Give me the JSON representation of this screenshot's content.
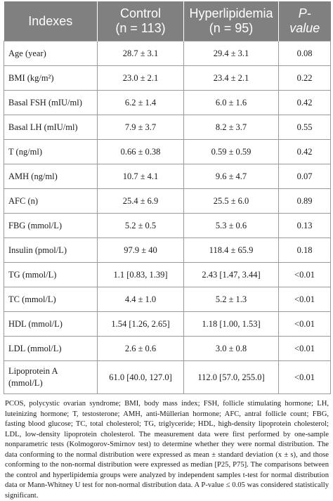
{
  "header": {
    "col1": "Indexes",
    "col2_line1": "Control",
    "col2_line2": "(n = 113)",
    "col3_line1": "Hyperlipidemia",
    "col3_line2": "(n = 95)",
    "col4_line1": "P-",
    "col4_line2": "value"
  },
  "rows": [
    {
      "index": "Age (year)",
      "control": "28.7 ± 3.1",
      "hyper": "29.4 ± 3.1",
      "p": "0.08"
    },
    {
      "index": "BMI (kg/m²)",
      "control": "23.0 ± 2.1",
      "hyper": "23.4 ± 2.1",
      "p": "0.22"
    },
    {
      "index": "Basal FSH (mIU/ml)",
      "control": "6.2 ± 1.4",
      "hyper": "6.0 ± 1.6",
      "p": "0.42"
    },
    {
      "index": "Basal LH (mIU/ml)",
      "control": "7.9 ± 3.7",
      "hyper": "8.2 ± 3.7",
      "p": "0.55"
    },
    {
      "index": "T (ng/ml)",
      "control": "0.66 ± 0.38",
      "hyper": "0.59 ± 0.59",
      "p": "0.42"
    },
    {
      "index": "AMH (ng/ml)",
      "control": "10.7 ± 4.1",
      "hyper": "9.6 ± 4.7",
      "p": "0.07"
    },
    {
      "index": "AFC (n)",
      "control": "25.4 ± 6.9",
      "hyper": "25.5 ± 6.0",
      "p": "0.89"
    },
    {
      "index": "FBG (mmol/L)",
      "control": "5.2 ± 0.5",
      "hyper": "5.3 ± 0.6",
      "p": "0.13"
    },
    {
      "index": "Insulin (pmol/L)",
      "control": "97.9 ± 40",
      "hyper": "118.4 ± 65.9",
      "p": "0.18"
    },
    {
      "index": "TG (mmol/L)",
      "control": "1.1 [0.83, 1.39]",
      "hyper": "2.43 [1.47, 3.44]",
      "p": "<0.01"
    },
    {
      "index": "TC (mmol/L)",
      "control": "4.4 ± 1.0",
      "hyper": "5.2 ± 1.3",
      "p": "<0.01"
    },
    {
      "index": "HDL (mmol/L)",
      "control": "1.54 [1.26, 2.65]",
      "hyper": "1.18 [1.00, 1.53]",
      "p": "<0.01"
    },
    {
      "index": "LDL (mmol/L)",
      "control": "2.6 ± 0.6",
      "hyper": "3.0 ± 0.8",
      "p": "<0.01"
    },
    {
      "index": "Lipoprotein A (mmol/L)",
      "control": "61.0 [40.0, 127.0]",
      "hyper": "112.0 [57.0, 255.0]",
      "p": "<0.01"
    }
  ],
  "footnote": "PCOS, polycystic ovarian syndrome; BMI, body mass index; FSH, follicle stimulating hormone; LH, luteinizing hormone; T, testosterone; AMH, anti-Müllerian hormone; AFC, antral follicle count; FBG, fasting blood glucose; TC, total cholesterol; TG, triglyceride; HDL, high-density lipoprotein cholesterol; LDL, low-density lipoprotein cholesterol. The measurement data were first performed by one-sample nonparametric tests (Kolmogorov-Smirnov test) to determine whether they were normal distribution. The data conforming to the normal distribution were expressed as mean ± standard deviation (x ± s), and those conforming to the non-normal distribution were expressed as median [P25, P75]. The comparisons between the control and hyperlipidemia groups were analyzed by independent samples t-test for normal distribution data or Mann-Whitney U test for non-normal distribution data. A P-value ≤ 0.05 was considered statistically significant."
}
